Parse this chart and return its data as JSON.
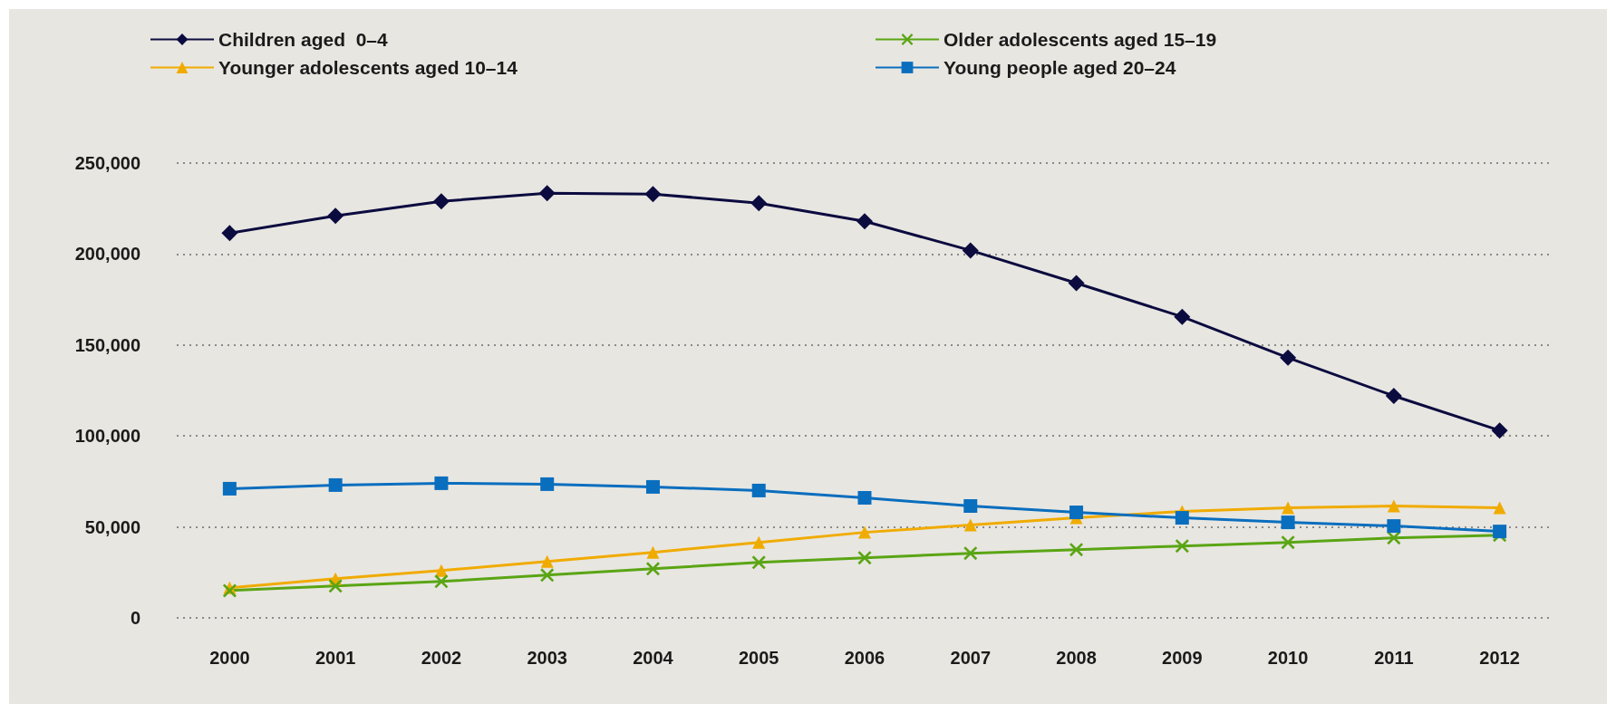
{
  "chart_data": {
    "type": "line",
    "categories": [
      "2000",
      "2001",
      "2002",
      "2003",
      "2004",
      "2005",
      "2006",
      "2007",
      "2008",
      "2009",
      "2010",
      "2011",
      "2012"
    ],
    "series": [
      {
        "name": "Children aged  0–4",
        "color": "#0b0b3f",
        "marker": "diamond",
        "values": [
          211500,
          221000,
          229000,
          233500,
          233000,
          228000,
          218000,
          202000,
          184000,
          165500,
          143000,
          122000,
          103000
        ]
      },
      {
        "name": "Younger adolescents aged 10–14",
        "color": "#f0ab00",
        "marker": "triangle",
        "values": [
          16500,
          21500,
          26000,
          31000,
          36000,
          41500,
          47000,
          51000,
          55000,
          58500,
          60500,
          61500,
          60500
        ]
      },
      {
        "name": "Older adolescents aged 15–19",
        "color": "#5aa514",
        "marker": "cross",
        "values": [
          15000,
          17500,
          20000,
          23500,
          27000,
          30500,
          33000,
          35500,
          37500,
          39500,
          41500,
          44000,
          45500
        ]
      },
      {
        "name": "Young people aged 20–24",
        "color": "#0a6ebe",
        "marker": "square",
        "values": [
          71000,
          73000,
          74000,
          73500,
          72000,
          70000,
          66000,
          61500,
          58000,
          55000,
          52500,
          50500,
          47500
        ]
      }
    ],
    "ylim": [
      0,
      250000
    ],
    "yticks": [
      0,
      {
        "value": 50000,
        "label": "50,000"
      },
      {
        "value": 100000,
        "label": "100,000"
      },
      {
        "value": 150000,
        "label": "150,000"
      },
      {
        "value": 200000,
        "label": "200,000"
      },
      {
        "value": 250000,
        "label": "250,000"
      }
    ],
    "grid": "y",
    "legend": "top left",
    "line_style": "solid"
  }
}
